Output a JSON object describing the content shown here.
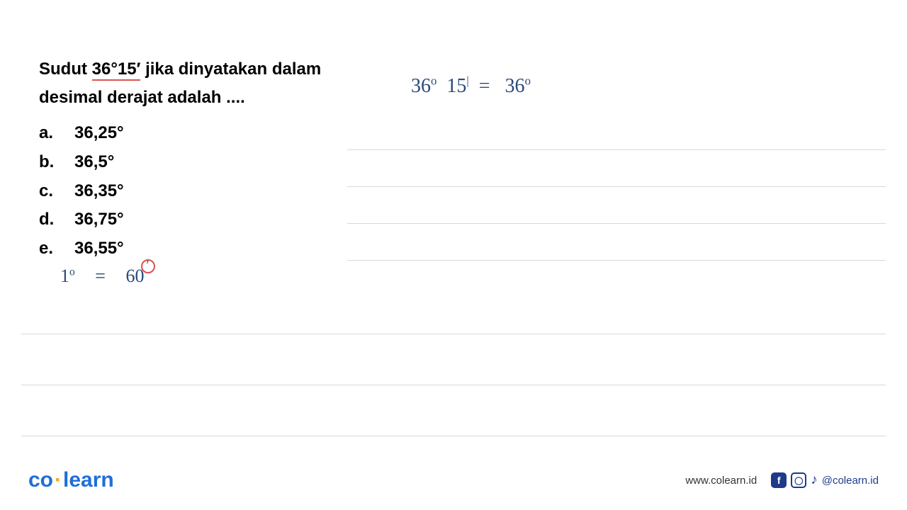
{
  "question": {
    "line1_before": "Sudut ",
    "line1_underlined": "36°15′",
    "line1_after": " jika dinyatakan dalam",
    "line2": "desimal derajat adalah ....",
    "font_size": 24,
    "font_weight": "bold",
    "color": "#000000",
    "underline_color": "#d9534f"
  },
  "options": [
    {
      "letter": "a.",
      "value": "36,25°"
    },
    {
      "letter": "b.",
      "value": "36,5°"
    },
    {
      "letter": "c.",
      "value": "36,35°"
    },
    {
      "letter": "d.",
      "value": "36,75°"
    },
    {
      "letter": "e.",
      "value": "36,55°"
    }
  ],
  "handwritten": {
    "right_expression": "36° 15′  =   36°",
    "left_lhs": "1°",
    "left_eq": "=",
    "left_rhs": "60",
    "circled_prime": "′",
    "color": "#2a4a7a",
    "circle_color": "#d9534f",
    "font_family": "Comic Sans MS"
  },
  "ruled_lines": {
    "right_count": 4,
    "full_count": 3,
    "color": "#d8d8d8"
  },
  "footer": {
    "logo_co": "co",
    "logo_dot": "·",
    "logo_learn": "learn",
    "logo_color": "#1e6fd9",
    "logo_dot_color": "#f5a623",
    "website": "www.colearn.id",
    "handle": "@colearn.id",
    "icon_color": "#1e3a8a",
    "fb_label": "f",
    "ig_label": "◎",
    "tiktok_label": "♪"
  }
}
